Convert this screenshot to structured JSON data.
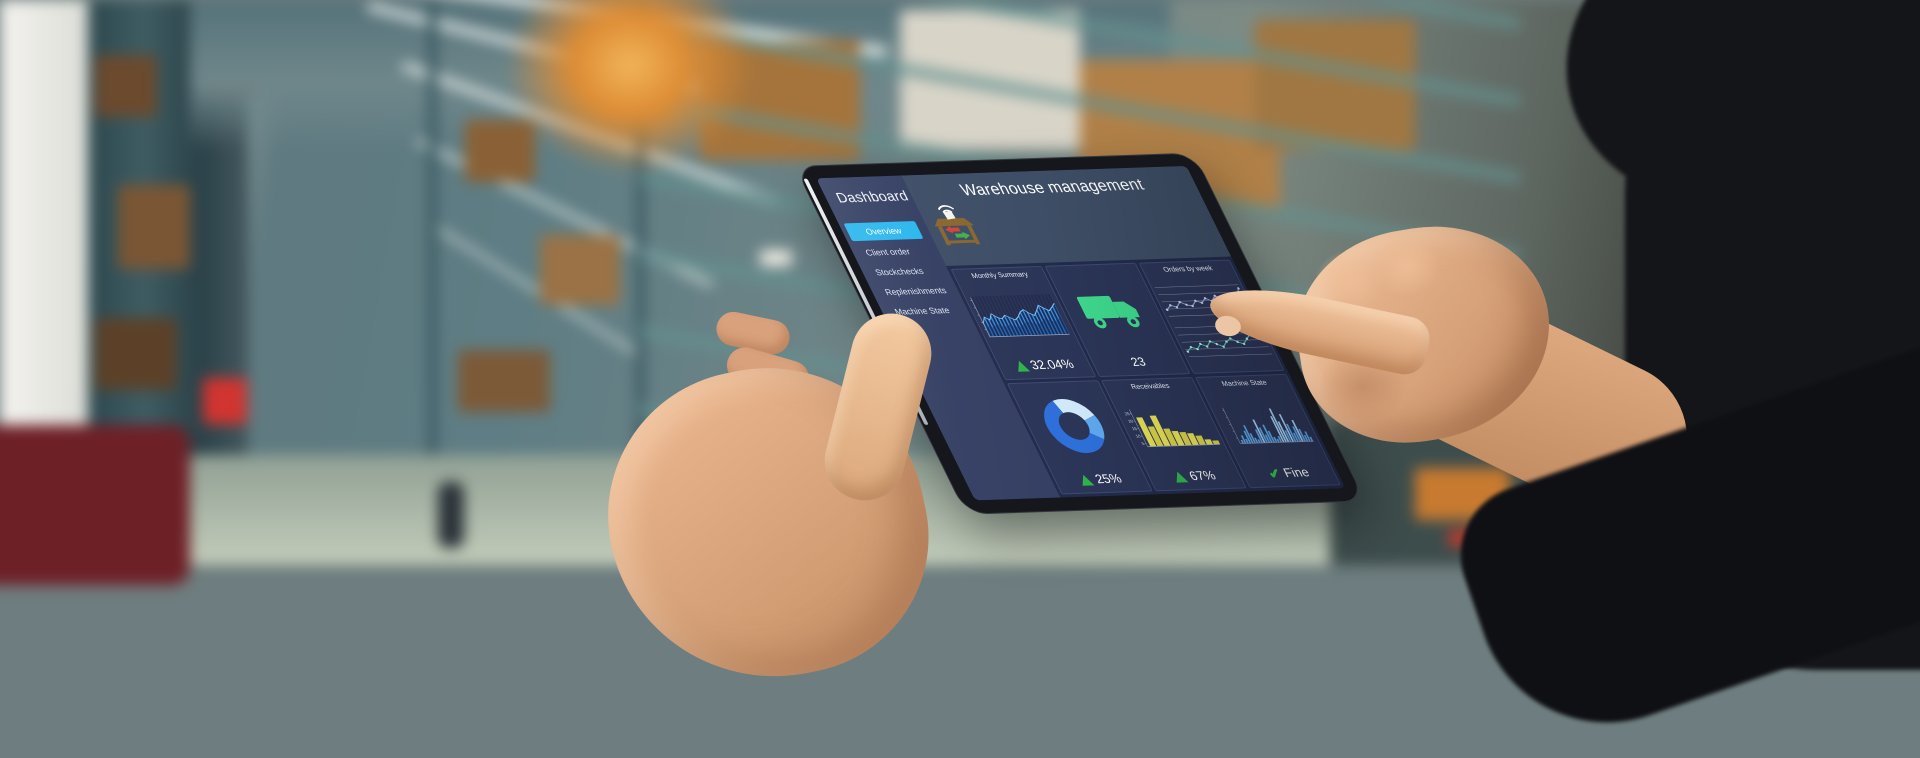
{
  "ui": {
    "sidebar": {
      "title": "Dashboard",
      "items": [
        {
          "label": "Overview",
          "active": true
        },
        {
          "label": "Client order",
          "active": false
        },
        {
          "label": "Stockchecks",
          "active": false
        },
        {
          "label": "Replenishments",
          "active": false
        },
        {
          "label": "Machine State",
          "active": false
        }
      ]
    },
    "header": {
      "title": "Warehouse management"
    },
    "tiles": [
      {
        "id": "monthly-summary",
        "label": "Monthly Summary",
        "footer": {
          "icon": "up-triangle-icon",
          "value": "32.04%"
        },
        "chart": {
          "type": "area",
          "color": "#2f8fe8",
          "inner_color": "#1565c0",
          "values": [
            34,
            52,
            44,
            60,
            50,
            46,
            55,
            48,
            42,
            50,
            62,
            68,
            58,
            52,
            64,
            78,
            70,
            63,
            72,
            82
          ]
        }
      },
      {
        "id": "deliveries",
        "icon": "truck-icon",
        "value": "23"
      },
      {
        "id": "orders-by-week",
        "label": "Orders by week",
        "charts": [
          {
            "type": "line",
            "color": "#8fa8d8",
            "dot_color": "#cdd9f0",
            "values": [
              18,
              30,
              24,
              38,
              30,
              26,
              40,
              34,
              46,
              38,
              52,
              44,
              40,
              56,
              48,
              70
            ]
          },
          {
            "type": "line",
            "color": "#4fc4ae",
            "dot_color": "#bfeee4",
            "values": [
              14,
              26,
              20,
              34,
              26,
              40,
              32,
              24,
              38,
              46,
              36,
              30,
              44,
              56,
              48,
              66
            ]
          }
        ]
      },
      {
        "id": "stock-donut",
        "footer": {
          "icon": "up-triangle-icon",
          "value": "25%"
        },
        "chart": {
          "type": "donut",
          "segments": [
            {
              "value": 24,
              "color": "#cfe9fb"
            },
            {
              "value": 15,
              "color": "#5fa8f0"
            },
            {
              "value": 61,
              "color": "#2e6fd9"
            }
          ]
        }
      },
      {
        "id": "receivables",
        "label": "Receivables",
        "footer": {
          "icon": "up-triangle-icon",
          "value": "67%"
        },
        "chart": {
          "type": "bar",
          "color": "#e4df55",
          "alt_color": "#d6d049",
          "ymax": 25,
          "yticks": [
            "25",
            "20",
            "15",
            "10",
            "5"
          ],
          "values": [
            22,
            15,
            23,
            13,
            11,
            10,
            9,
            7,
            4,
            3
          ]
        }
      },
      {
        "id": "machine-state",
        "label": "Machine State",
        "footer": {
          "icon": "check-icon",
          "value": "Fine"
        },
        "chart": {
          "type": "spikes",
          "color": "#5ea8ec",
          "peak_color": "#a6d4fb",
          "values": [
            8,
            18,
            10,
            28,
            40,
            22,
            12,
            8,
            30,
            52,
            34,
            18,
            40,
            26,
            12,
            8,
            14,
            58,
            75,
            46,
            26,
            62,
            40,
            20,
            34,
            48,
            28,
            14,
            22,
            10
          ]
        }
      }
    ],
    "colors": {
      "accent_cyan": "#2bb7ee",
      "positive_green": "#2fb34a",
      "truck_green": "#3fd98e",
      "check_green": "#35c24d",
      "sidebar_bg": "#343f63",
      "banner_bg": "#3e4e66",
      "tile_bg": "#2b3557"
    }
  }
}
